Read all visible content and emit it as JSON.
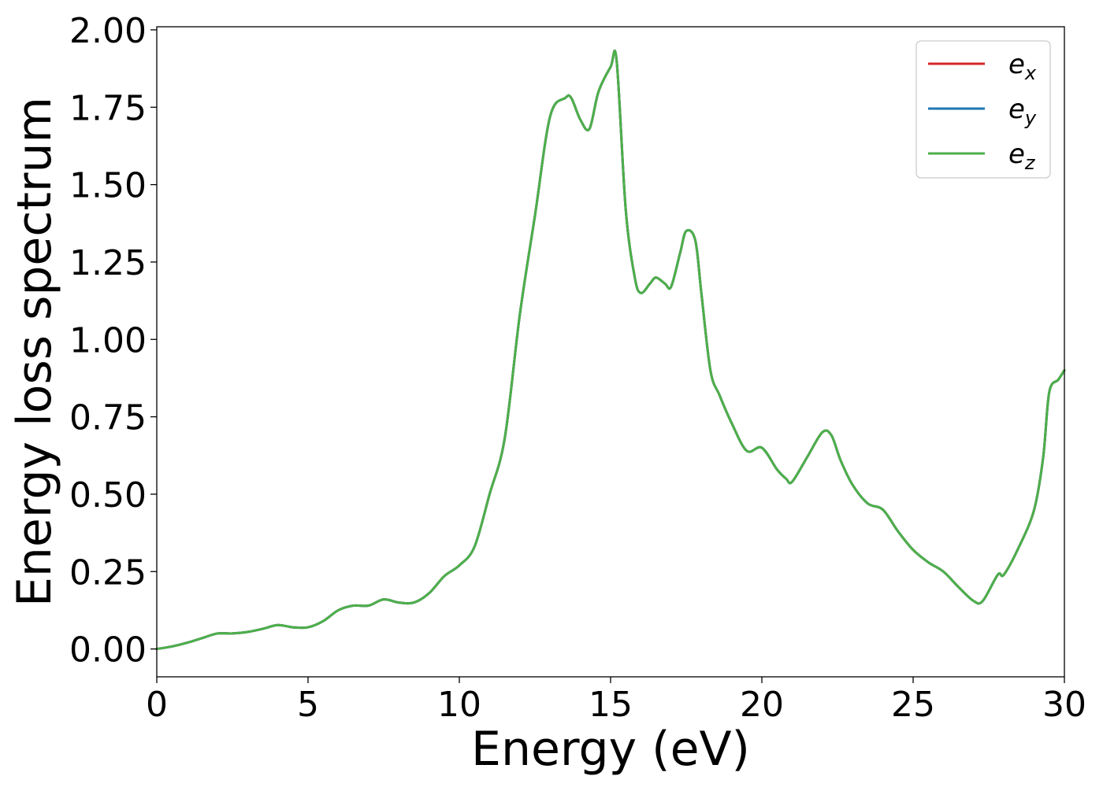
{
  "chart_data": {
    "type": "line",
    "title": "",
    "xlabel": "Energy (eV)",
    "ylabel": "Energy loss spectrum",
    "xlim": [
      0,
      30
    ],
    "ylim": [
      -0.09,
      2.01
    ],
    "xticks": [
      0,
      5,
      10,
      15,
      20,
      25,
      30
    ],
    "xtick_labels": [
      "0",
      "5",
      "10",
      "15",
      "20",
      "25",
      "30"
    ],
    "yticks": [
      0.0,
      0.25,
      0.5,
      0.75,
      1.0,
      1.25,
      1.5,
      1.75,
      2.0
    ],
    "ytick_labels": [
      "0.00",
      "0.25",
      "0.50",
      "0.75",
      "1.00",
      "1.25",
      "1.50",
      "1.75",
      "2.00"
    ],
    "grid": false,
    "legend_position": "top-right",
    "series": [
      {
        "name": "e",
        "subscript": "x",
        "color": "#d62728",
        "x": [
          0,
          0.5,
          1,
          1.5,
          2,
          2.5,
          3,
          3.5,
          4,
          4.5,
          5,
          5.5,
          6,
          6.5,
          7,
          7.5,
          8,
          8.5,
          9,
          9.5,
          10,
          10.5,
          11,
          11.5,
          12,
          12.5,
          13,
          13.5,
          13.7,
          14,
          14.3,
          14.6,
          15,
          15.2,
          15.5,
          15.8,
          16,
          16.3,
          16.5,
          16.8,
          17,
          17.3,
          17.5,
          17.8,
          18,
          18.3,
          18.6,
          19,
          19.5,
          20,
          20.5,
          20.8,
          21,
          21.5,
          22,
          22.3,
          22.6,
          23,
          23.5,
          24,
          24.5,
          25,
          25.5,
          26,
          26.5,
          27,
          27.3,
          27.8,
          28,
          28.5,
          29,
          29.3,
          29.5,
          29.8,
          30
        ],
        "y": [
          0.0,
          0.008,
          0.02,
          0.035,
          0.05,
          0.05,
          0.055,
          0.065,
          0.077,
          0.07,
          0.07,
          0.09,
          0.125,
          0.14,
          0.14,
          0.16,
          0.15,
          0.15,
          0.18,
          0.235,
          0.27,
          0.33,
          0.5,
          0.68,
          1.08,
          1.4,
          1.72,
          1.78,
          1.78,
          1.71,
          1.68,
          1.8,
          1.88,
          1.9,
          1.42,
          1.2,
          1.15,
          1.18,
          1.2,
          1.18,
          1.17,
          1.28,
          1.35,
          1.32,
          1.15,
          0.9,
          0.82,
          0.73,
          0.64,
          0.65,
          0.58,
          0.55,
          0.54,
          0.62,
          0.7,
          0.69,
          0.61,
          0.53,
          0.47,
          0.45,
          0.38,
          0.32,
          0.28,
          0.25,
          0.2,
          0.155,
          0.155,
          0.24,
          0.24,
          0.33,
          0.45,
          0.62,
          0.83,
          0.87,
          0.9
        ]
      },
      {
        "name": "e",
        "subscript": "y",
        "color": "#1f77b4",
        "x": [
          0,
          0.5,
          1,
          1.5,
          2,
          2.5,
          3,
          3.5,
          4,
          4.5,
          5,
          5.5,
          6,
          6.5,
          7,
          7.5,
          8,
          8.5,
          9,
          9.5,
          10,
          10.5,
          11,
          11.5,
          12,
          12.5,
          13,
          13.5,
          13.7,
          14,
          14.3,
          14.6,
          15,
          15.2,
          15.5,
          15.8,
          16,
          16.3,
          16.5,
          16.8,
          17,
          17.3,
          17.5,
          17.8,
          18,
          18.3,
          18.6,
          19,
          19.5,
          20,
          20.5,
          20.8,
          21,
          21.5,
          22,
          22.3,
          22.6,
          23,
          23.5,
          24,
          24.5,
          25,
          25.5,
          26,
          26.5,
          27,
          27.3,
          27.8,
          28,
          28.5,
          29,
          29.3,
          29.5,
          29.8,
          30
        ],
        "y": [
          0.0,
          0.008,
          0.02,
          0.035,
          0.05,
          0.05,
          0.055,
          0.065,
          0.077,
          0.07,
          0.07,
          0.09,
          0.125,
          0.14,
          0.14,
          0.16,
          0.15,
          0.15,
          0.18,
          0.235,
          0.27,
          0.33,
          0.5,
          0.68,
          1.08,
          1.4,
          1.72,
          1.78,
          1.78,
          1.71,
          1.68,
          1.8,
          1.88,
          1.9,
          1.42,
          1.2,
          1.15,
          1.18,
          1.2,
          1.18,
          1.17,
          1.28,
          1.35,
          1.32,
          1.15,
          0.9,
          0.82,
          0.73,
          0.64,
          0.65,
          0.58,
          0.55,
          0.54,
          0.62,
          0.7,
          0.69,
          0.61,
          0.53,
          0.47,
          0.45,
          0.38,
          0.32,
          0.28,
          0.25,
          0.2,
          0.155,
          0.155,
          0.24,
          0.24,
          0.33,
          0.45,
          0.62,
          0.83,
          0.87,
          0.9
        ]
      },
      {
        "name": "e",
        "subscript": "z",
        "color": "#4daf4a",
        "x": [
          0,
          0.5,
          1,
          1.5,
          2,
          2.5,
          3,
          3.5,
          4,
          4.5,
          5,
          5.5,
          6,
          6.5,
          7,
          7.5,
          8,
          8.5,
          9,
          9.5,
          10,
          10.5,
          11,
          11.5,
          12,
          12.5,
          13,
          13.5,
          13.7,
          14,
          14.3,
          14.6,
          15,
          15.2,
          15.5,
          15.8,
          16,
          16.3,
          16.5,
          16.8,
          17,
          17.3,
          17.5,
          17.8,
          18,
          18.3,
          18.6,
          19,
          19.5,
          20,
          20.5,
          20.8,
          21,
          21.5,
          22,
          22.3,
          22.6,
          23,
          23.5,
          24,
          24.5,
          25,
          25.5,
          26,
          26.5,
          27,
          27.3,
          27.8,
          28,
          28.5,
          29,
          29.3,
          29.5,
          29.8,
          30
        ],
        "y": [
          0.0,
          0.008,
          0.02,
          0.035,
          0.05,
          0.05,
          0.055,
          0.065,
          0.077,
          0.07,
          0.07,
          0.09,
          0.125,
          0.14,
          0.14,
          0.16,
          0.15,
          0.15,
          0.18,
          0.235,
          0.27,
          0.33,
          0.5,
          0.68,
          1.08,
          1.4,
          1.72,
          1.78,
          1.78,
          1.71,
          1.68,
          1.8,
          1.88,
          1.9,
          1.42,
          1.2,
          1.15,
          1.18,
          1.2,
          1.18,
          1.17,
          1.28,
          1.35,
          1.32,
          1.15,
          0.9,
          0.82,
          0.73,
          0.64,
          0.65,
          0.58,
          0.55,
          0.54,
          0.62,
          0.7,
          0.69,
          0.61,
          0.53,
          0.47,
          0.45,
          0.38,
          0.32,
          0.28,
          0.25,
          0.2,
          0.155,
          0.155,
          0.24,
          0.24,
          0.33,
          0.45,
          0.62,
          0.83,
          0.87,
          0.9
        ]
      }
    ]
  }
}
